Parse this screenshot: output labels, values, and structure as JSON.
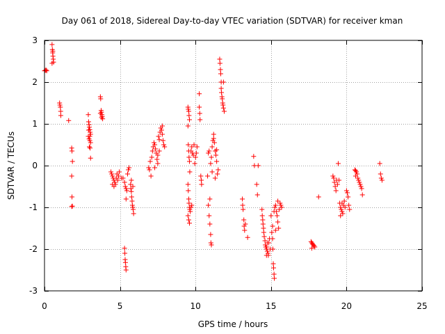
{
  "chart_data": {
    "type": "scatter",
    "title": "Day 061 of 2018, Sidereal Day-to-day VTEC variation (SDTVAR) for receiver kman",
    "xlabel": "GPS time / hours",
    "ylabel": "SDTVAR / TECUs",
    "xlim": [
      0,
      25
    ],
    "ylim": [
      -3,
      3
    ],
    "xticks": [
      0,
      5,
      10,
      15,
      20,
      25
    ],
    "yticks": [
      -3,
      -2,
      -1,
      0,
      1,
      2,
      3
    ],
    "xtick_labels": [
      "0",
      "5",
      "10",
      "15",
      "20",
      "25"
    ],
    "ytick_labels": [
      "-3",
      "-2",
      "-1",
      "0",
      "1",
      "2",
      "3"
    ],
    "grid": true,
    "marker": "+",
    "color": "#ff0000",
    "series": [
      {
        "name": "SDTVAR",
        "points": [
          [
            0.0,
            2.27
          ],
          [
            0.05,
            2.28
          ],
          [
            0.1,
            2.29
          ],
          [
            0.15,
            2.27
          ],
          [
            0.5,
            2.9
          ],
          [
            0.52,
            2.78
          ],
          [
            0.54,
            2.7
          ],
          [
            0.56,
            2.62
          ],
          [
            0.58,
            2.55
          ],
          [
            0.6,
            2.48
          ],
          [
            0.5,
            2.45
          ],
          [
            0.55,
            2.74
          ],
          [
            1.0,
            1.5
          ],
          [
            1.02,
            1.45
          ],
          [
            1.05,
            1.4
          ],
          [
            1.07,
            1.3
          ],
          [
            1.08,
            1.2
          ],
          [
            1.6,
            1.08
          ],
          [
            1.8,
            0.42
          ],
          [
            1.82,
            0.35
          ],
          [
            1.85,
            0.1
          ],
          [
            1.8,
            -0.25
          ],
          [
            1.82,
            -0.75
          ],
          [
            1.85,
            -0.97
          ],
          [
            1.8,
            -0.98
          ],
          [
            2.9,
            1.22
          ],
          [
            2.92,
            1.05
          ],
          [
            2.95,
            0.98
          ],
          [
            2.97,
            0.92
          ],
          [
            3.0,
            0.86
          ],
          [
            3.02,
            0.8
          ],
          [
            3.05,
            0.75
          ],
          [
            2.9,
            0.7
          ],
          [
            2.95,
            0.64
          ],
          [
            3.0,
            0.6
          ],
          [
            3.05,
            0.55
          ],
          [
            2.97,
            0.45
          ],
          [
            3.02,
            0.42
          ],
          [
            3.05,
            0.18
          ],
          [
            2.92,
            0.85
          ],
          [
            3.0,
            0.7
          ],
          [
            3.7,
            1.65
          ],
          [
            3.72,
            1.6
          ],
          [
            3.75,
            1.32
          ],
          [
            3.77,
            1.28
          ],
          [
            3.8,
            1.22
          ],
          [
            3.82,
            1.18
          ],
          [
            3.85,
            1.12
          ],
          [
            3.7,
            1.25
          ],
          [
            3.78,
            1.15
          ],
          [
            4.4,
            -0.15
          ],
          [
            4.45,
            -0.2
          ],
          [
            4.5,
            -0.25
          ],
          [
            4.55,
            -0.3
          ],
          [
            4.6,
            -0.35
          ],
          [
            4.65,
            -0.4
          ],
          [
            4.7,
            -0.45
          ],
          [
            4.75,
            -0.3
          ],
          [
            4.8,
            -0.2
          ],
          [
            4.85,
            -0.35
          ],
          [
            4.5,
            -0.45
          ],
          [
            4.6,
            -0.5
          ],
          [
            4.9,
            -0.25
          ],
          [
            4.95,
            -0.15
          ],
          [
            5.1,
            -0.3
          ],
          [
            5.2,
            -0.3
          ],
          [
            5.3,
            -0.4
          ],
          [
            5.35,
            -0.5
          ],
          [
            5.4,
            -0.55
          ],
          [
            5.45,
            -0.6
          ],
          [
            5.5,
            -0.2
          ],
          [
            5.55,
            -0.1
          ],
          [
            5.6,
            -0.05
          ],
          [
            5.4,
            -0.8
          ],
          [
            5.3,
            -1.98
          ],
          [
            5.32,
            -2.1
          ],
          [
            5.34,
            -2.25
          ],
          [
            5.36,
            -2.32
          ],
          [
            5.38,
            -2.42
          ],
          [
            5.4,
            -2.5
          ],
          [
            5.7,
            -0.45
          ],
          [
            5.72,
            -0.55
          ],
          [
            5.75,
            -0.62
          ],
          [
            5.77,
            -0.75
          ],
          [
            5.8,
            -0.85
          ],
          [
            5.82,
            -0.95
          ],
          [
            5.85,
            -1.0
          ],
          [
            5.87,
            -1.05
          ],
          [
            5.9,
            -1.15
          ],
          [
            5.75,
            -0.35
          ],
          [
            5.85,
            -0.5
          ],
          [
            6.9,
            -0.05
          ],
          [
            6.95,
            -0.1
          ],
          [
            7.0,
            0.1
          ],
          [
            7.05,
            -0.25
          ],
          [
            7.1,
            0.2
          ],
          [
            7.15,
            0.35
          ],
          [
            7.2,
            0.45
          ],
          [
            7.25,
            0.55
          ],
          [
            7.3,
            0.5
          ],
          [
            7.35,
            0.4
          ],
          [
            7.4,
            0.3
          ],
          [
            7.45,
            0.15
          ],
          [
            7.5,
            0.05
          ],
          [
            7.55,
            0.7
          ],
          [
            7.6,
            0.62
          ],
          [
            7.65,
            0.8
          ],
          [
            7.7,
            0.9
          ],
          [
            7.75,
            0.85
          ],
          [
            7.8,
            0.75
          ],
          [
            7.85,
            0.6
          ],
          [
            7.9,
            0.5
          ],
          [
            7.95,
            0.45
          ],
          [
            7.3,
            -0.05
          ],
          [
            7.6,
            0.35
          ],
          [
            7.8,
            0.95
          ],
          [
            7.5,
            0.25
          ],
          [
            9.5,
            1.4
          ],
          [
            9.52,
            1.35
          ],
          [
            9.55,
            1.3
          ],
          [
            9.57,
            1.2
          ],
          [
            9.6,
            1.1
          ],
          [
            9.5,
            0.95
          ],
          [
            9.52,
            0.5
          ],
          [
            9.55,
            0.35
          ],
          [
            9.57,
            0.2
          ],
          [
            9.6,
            0.1
          ],
          [
            9.62,
            -0.15
          ],
          [
            9.5,
            -0.45
          ],
          [
            9.52,
            -0.6
          ],
          [
            9.55,
            -0.8
          ],
          [
            9.57,
            -0.9
          ],
          [
            9.6,
            -1.0
          ],
          [
            9.62,
            -1.05
          ],
          [
            9.65,
            -1.1
          ],
          [
            9.5,
            -1.2
          ],
          [
            9.55,
            -1.3
          ],
          [
            9.6,
            -1.38
          ],
          [
            9.7,
            -1.0
          ],
          [
            9.75,
            -0.95
          ],
          [
            9.8,
            0.3
          ],
          [
            9.85,
            0.25
          ],
          [
            9.9,
            0.5
          ],
          [
            9.7,
            0.35
          ],
          [
            9.75,
            0.45
          ],
          [
            9.95,
            0.05
          ],
          [
            10.0,
            0.2
          ],
          [
            10.05,
            0.3
          ],
          [
            10.1,
            0.45
          ],
          [
            10.25,
            1.72
          ],
          [
            10.25,
            1.4
          ],
          [
            10.28,
            1.25
          ],
          [
            10.3,
            1.1
          ],
          [
            10.35,
            -0.25
          ],
          [
            10.38,
            -0.35
          ],
          [
            10.4,
            -0.45
          ],
          [
            10.8,
            -0.25
          ],
          [
            10.85,
            -0.95
          ],
          [
            10.9,
            -1.2
          ],
          [
            10.95,
            -1.4
          ],
          [
            11.0,
            -1.65
          ],
          [
            11.02,
            -1.85
          ],
          [
            11.05,
            -1.9
          ],
          [
            10.85,
            0.3
          ],
          [
            10.9,
            0.35
          ],
          [
            10.95,
            -0.8
          ],
          [
            11.0,
            0.05
          ],
          [
            11.05,
            0.2
          ],
          [
            11.1,
            0.45
          ],
          [
            11.15,
            0.6
          ],
          [
            11.2,
            0.75
          ],
          [
            11.25,
            0.55
          ],
          [
            11.3,
            0.35
          ],
          [
            11.35,
            0.25
          ],
          [
            11.4,
            0.1
          ],
          [
            11.45,
            -0.2
          ],
          [
            11.5,
            -0.1
          ],
          [
            11.2,
            0.65
          ],
          [
            11.3,
            -0.3
          ],
          [
            11.1,
            -0.15
          ],
          [
            11.4,
            0.38
          ],
          [
            11.6,
            2.55
          ],
          [
            11.62,
            2.45
          ],
          [
            11.65,
            2.3
          ],
          [
            11.67,
            2.2
          ],
          [
            11.7,
            1.85
          ],
          [
            11.72,
            1.75
          ],
          [
            11.75,
            1.65
          ],
          [
            11.77,
            1.6
          ],
          [
            11.8,
            1.5
          ],
          [
            11.82,
            1.45
          ],
          [
            11.85,
            1.38
          ],
          [
            11.9,
            1.3
          ],
          [
            11.7,
            2.0
          ],
          [
            11.85,
            2.0
          ],
          [
            13.1,
            -0.8
          ],
          [
            13.12,
            -0.95
          ],
          [
            13.15,
            -1.05
          ],
          [
            13.2,
            -1.3
          ],
          [
            13.22,
            -1.45
          ],
          [
            13.25,
            -1.55
          ],
          [
            13.3,
            -1.4
          ],
          [
            13.45,
            -1.72
          ],
          [
            13.85,
            0.22
          ],
          [
            13.9,
            0.0
          ],
          [
            14.05,
            -0.45
          ],
          [
            14.1,
            -0.7
          ],
          [
            14.15,
            0.0
          ],
          [
            14.4,
            -1.05
          ],
          [
            14.42,
            -1.2
          ],
          [
            14.45,
            -1.3
          ],
          [
            14.47,
            -1.4
          ],
          [
            14.5,
            -1.5
          ],
          [
            14.52,
            -1.6
          ],
          [
            14.55,
            -1.7
          ],
          [
            14.6,
            -1.8
          ],
          [
            14.62,
            -1.9
          ],
          [
            14.65,
            -1.95
          ],
          [
            14.7,
            -2.0
          ],
          [
            14.72,
            -1.95
          ],
          [
            14.75,
            -2.05
          ],
          [
            14.8,
            -2.1
          ],
          [
            14.82,
            -2.15
          ],
          [
            14.85,
            -1.85
          ],
          [
            14.9,
            -1.75
          ],
          [
            14.95,
            -2.0
          ],
          [
            14.7,
            -2.15
          ],
          [
            14.75,
            -1.85
          ],
          [
            15.0,
            -1.2
          ],
          [
            15.05,
            -1.6
          ],
          [
            15.1,
            -1.75
          ],
          [
            15.12,
            -2.0
          ],
          [
            15.15,
            -2.35
          ],
          [
            15.17,
            -2.45
          ],
          [
            15.2,
            -2.6
          ],
          [
            15.22,
            -2.7
          ],
          [
            15.1,
            -1.45
          ],
          [
            15.2,
            -1.1
          ],
          [
            15.25,
            -1.0
          ],
          [
            15.3,
            -0.95
          ],
          [
            15.35,
            -1.1
          ],
          [
            15.4,
            -1.2
          ],
          [
            15.45,
            -1.35
          ],
          [
            15.5,
            -1.5
          ],
          [
            15.55,
            -1.05
          ],
          [
            15.6,
            -0.9
          ],
          [
            15.65,
            -0.95
          ],
          [
            15.7,
            -1.0
          ],
          [
            15.3,
            -1.55
          ],
          [
            15.45,
            -0.85
          ],
          [
            17.65,
            -1.82
          ],
          [
            17.7,
            -1.85
          ],
          [
            17.75,
            -1.88
          ],
          [
            17.8,
            -1.9
          ],
          [
            17.85,
            -1.92
          ],
          [
            17.9,
            -1.95
          ],
          [
            17.7,
            -1.98
          ],
          [
            18.15,
            -0.75
          ],
          [
            19.1,
            -0.25
          ],
          [
            19.15,
            -0.3
          ],
          [
            19.2,
            -0.4
          ],
          [
            19.25,
            -0.5
          ],
          [
            19.3,
            -0.6
          ],
          [
            19.35,
            -0.35
          ],
          [
            19.4,
            -0.45
          ],
          [
            19.45,
            0.05
          ],
          [
            19.5,
            -0.35
          ],
          [
            19.55,
            -0.9
          ],
          [
            19.6,
            -1.0
          ],
          [
            19.65,
            -1.05
          ],
          [
            19.7,
            -1.1
          ],
          [
            19.75,
            -1.15
          ],
          [
            19.8,
            -0.95
          ],
          [
            19.85,
            -0.85
          ],
          [
            19.9,
            -1.0
          ],
          [
            19.6,
            -1.2
          ],
          [
            19.7,
            -0.9
          ],
          [
            20.0,
            -0.6
          ],
          [
            20.05,
            -0.65
          ],
          [
            20.1,
            -0.75
          ],
          [
            20.15,
            -0.95
          ],
          [
            20.2,
            -1.05
          ],
          [
            20.55,
            -0.1
          ],
          [
            20.6,
            -0.12
          ],
          [
            20.65,
            -0.15
          ],
          [
            20.7,
            -0.2
          ],
          [
            20.75,
            -0.3
          ],
          [
            20.8,
            -0.35
          ],
          [
            20.85,
            -0.4
          ],
          [
            20.9,
            -0.45
          ],
          [
            20.95,
            -0.5
          ],
          [
            21.0,
            -0.55
          ],
          [
            21.05,
            -0.7
          ],
          [
            20.6,
            -0.25
          ],
          [
            22.2,
            0.05
          ],
          [
            22.25,
            -0.2
          ],
          [
            22.3,
            -0.3
          ],
          [
            22.35,
            -0.35
          ]
        ]
      }
    ]
  }
}
